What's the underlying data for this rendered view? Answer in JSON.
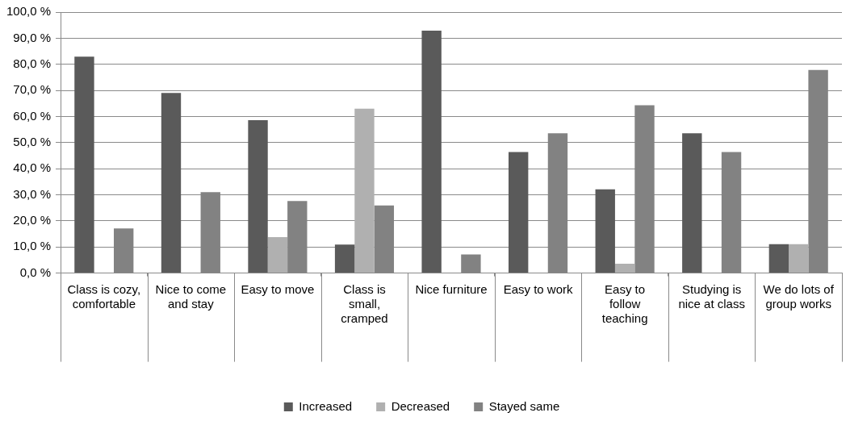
{
  "chart_data": {
    "type": "bar",
    "categories": [
      "Class is cozy, comfortable",
      "Nice to come and stay",
      "Easy to move",
      "Class is small, cramped",
      "Nice furniture",
      "Easy to work",
      "Easy to follow teaching",
      "Studying is nice at class",
      "We do lots of group works"
    ],
    "series": [
      {
        "name": "Increased",
        "color": "#5a5a5a",
        "values": [
          82.9,
          69.0,
          58.6,
          10.9,
          92.9,
          46.4,
          32.1,
          53.6,
          11.1
        ]
      },
      {
        "name": "Decreased",
        "color": "#b0b0b0",
        "values": [
          0,
          0,
          13.8,
          63.0,
          0,
          0,
          3.6,
          0,
          11.1
        ]
      },
      {
        "name": "Stayed same",
        "color": "#828282",
        "values": [
          17.1,
          31.0,
          27.6,
          25.9,
          7.1,
          53.6,
          64.3,
          46.4,
          77.8
        ]
      }
    ],
    "ylim": [
      0,
      100
    ],
    "yticks": [
      {
        "value": 0,
        "label": "0,0 %"
      },
      {
        "value": 10,
        "label": "10,0 %"
      },
      {
        "value": 20,
        "label": "20,0 %"
      },
      {
        "value": 30,
        "label": "30,0 %"
      },
      {
        "value": 40,
        "label": "40,0 %"
      },
      {
        "value": 50,
        "label": "50,0 %"
      },
      {
        "value": 60,
        "label": "60,0 %"
      },
      {
        "value": 70,
        "label": "70,0 %"
      },
      {
        "value": 80,
        "label": "80,0 %"
      },
      {
        "value": 90,
        "label": "90,0 %"
      },
      {
        "value": 100,
        "label": "100,0 %"
      }
    ],
    "grid": "y",
    "legend": "bottom"
  }
}
